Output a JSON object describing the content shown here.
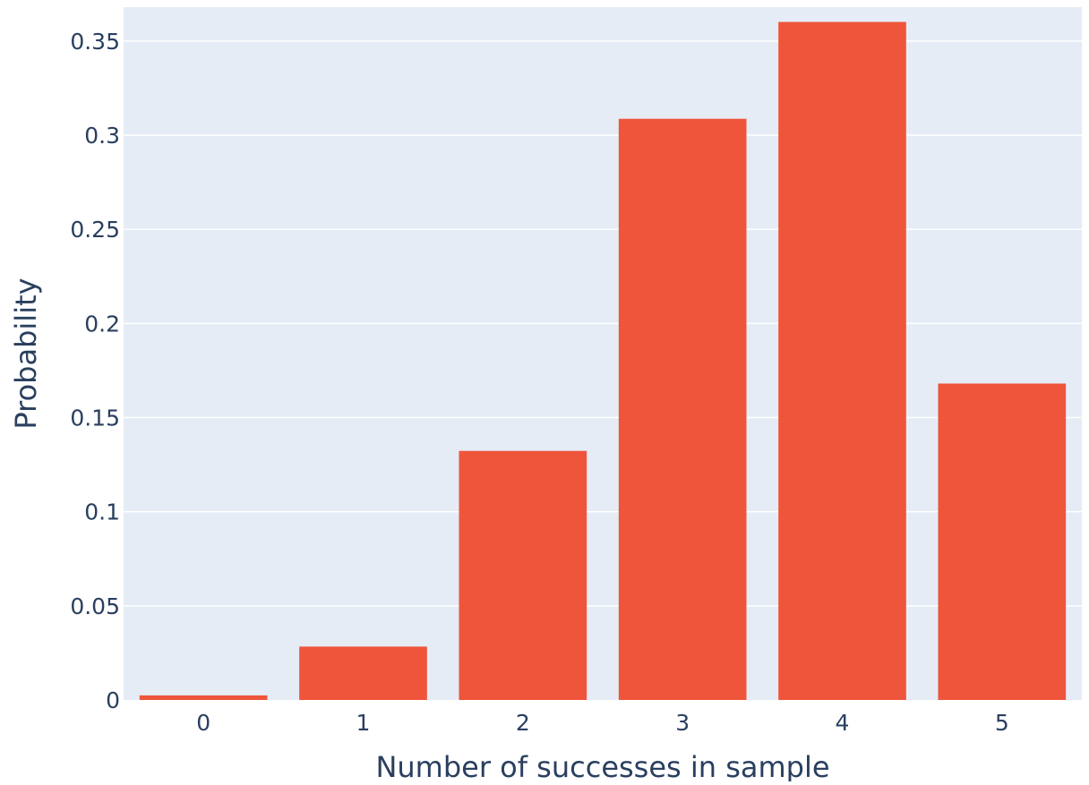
{
  "chart_data": {
    "type": "bar",
    "title": "",
    "xlabel": "Number of successes in sample",
    "ylabel": "Probability",
    "categories": [
      "0",
      "1",
      "2",
      "3",
      "4",
      "5"
    ],
    "values": [
      0.00243,
      0.02835,
      0.1323,
      0.3087,
      0.36015,
      0.16807
    ],
    "ylim": [
      0,
      0.368
    ],
    "yticks": [
      0,
      0.05,
      0.1,
      0.15,
      0.2,
      0.25,
      0.3,
      0.35
    ],
    "ytick_labels": [
      "0",
      "0.05",
      "0.1",
      "0.15",
      "0.2",
      "0.25",
      "0.3",
      "0.35"
    ],
    "grid": true,
    "legend": "none",
    "colors": {
      "bar": "#EF553B",
      "plot_background": "#E5ECF6",
      "grid": "#FFFFFF",
      "text": "#2A3F5F"
    }
  }
}
